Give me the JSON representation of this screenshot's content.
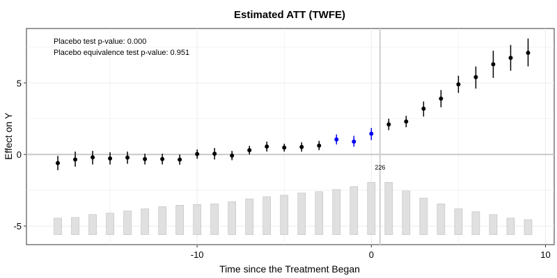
{
  "chart_data": {
    "type": "scatter",
    "title": "Estimated ATT (TWFE)",
    "xlabel": "Time since the Treatment Began",
    "ylabel": "Effect on Y",
    "xlim": [
      -19.8,
      10.5
    ],
    "ylim": [
      -6.3,
      8.8
    ],
    "xticks": [
      -10,
      0,
      10
    ],
    "yticks": [
      -5,
      0,
      5
    ],
    "grid": true,
    "annotations": [
      "Placebo test p-value: 0.000",
      "Placebo equivalence test p-value: 0.951"
    ],
    "count_label": {
      "text": "226",
      "x": 0,
      "y": -1.05
    },
    "colors": {
      "point": "#000000",
      "placebo": "#0000ee",
      "bar": "#e0e0e0",
      "bar_border": "#bdbdbd",
      "zero_line": "#c8c8c8"
    },
    "points": [
      {
        "x": -18,
        "y": -0.6,
        "lo": -1.1,
        "hi": -0.1,
        "placebo": false
      },
      {
        "x": -17,
        "y": -0.35,
        "lo": -0.85,
        "hi": 0.2,
        "placebo": false
      },
      {
        "x": -16,
        "y": -0.2,
        "lo": -0.7,
        "hi": 0.25,
        "placebo": false
      },
      {
        "x": -15,
        "y": -0.28,
        "lo": -0.7,
        "hi": 0.15,
        "placebo": false
      },
      {
        "x": -14,
        "y": -0.22,
        "lo": -0.65,
        "hi": 0.2,
        "placebo": false
      },
      {
        "x": -13,
        "y": -0.32,
        "lo": -0.7,
        "hi": 0.05,
        "placebo": false
      },
      {
        "x": -12,
        "y": -0.32,
        "lo": -0.7,
        "hi": 0.05,
        "placebo": false
      },
      {
        "x": -11,
        "y": -0.36,
        "lo": -0.72,
        "hi": 0.0,
        "placebo": false
      },
      {
        "x": -10,
        "y": 0.03,
        "lo": -0.3,
        "hi": 0.35,
        "placebo": false
      },
      {
        "x": -9,
        "y": 0.05,
        "lo": -0.35,
        "hi": 0.45,
        "placebo": false
      },
      {
        "x": -8,
        "y": -0.08,
        "lo": -0.4,
        "hi": 0.25,
        "placebo": false
      },
      {
        "x": -7,
        "y": 0.3,
        "lo": 0.0,
        "hi": 0.6,
        "placebo": false
      },
      {
        "x": -6,
        "y": 0.55,
        "lo": 0.2,
        "hi": 0.9,
        "placebo": false
      },
      {
        "x": -5,
        "y": 0.48,
        "lo": 0.2,
        "hi": 0.75,
        "placebo": false
      },
      {
        "x": -4,
        "y": 0.52,
        "lo": 0.2,
        "hi": 0.85,
        "placebo": false
      },
      {
        "x": -3,
        "y": 0.62,
        "lo": 0.3,
        "hi": 0.95,
        "placebo": false
      },
      {
        "x": -2,
        "y": 1.05,
        "lo": 0.7,
        "hi": 1.4,
        "placebo": true
      },
      {
        "x": -1,
        "y": 0.9,
        "lo": 0.55,
        "hi": 1.3,
        "placebo": true
      },
      {
        "x": 0,
        "y": 1.45,
        "lo": 1.0,
        "hi": 1.85,
        "placebo": true
      },
      {
        "x": 1,
        "y": 2.1,
        "lo": 1.7,
        "hi": 2.5,
        "placebo": false
      },
      {
        "x": 2,
        "y": 2.3,
        "lo": 1.9,
        "hi": 2.7,
        "placebo": false
      },
      {
        "x": 3,
        "y": 3.2,
        "lo": 2.65,
        "hi": 3.7,
        "placebo": false
      },
      {
        "x": 4,
        "y": 3.9,
        "lo": 3.3,
        "hi": 4.5,
        "placebo": false
      },
      {
        "x": 5,
        "y": 4.9,
        "lo": 4.3,
        "hi": 5.5,
        "placebo": false
      },
      {
        "x": 6,
        "y": 5.4,
        "lo": 4.6,
        "hi": 6.15,
        "placebo": false
      },
      {
        "x": 7,
        "y": 6.3,
        "lo": 5.35,
        "hi": 7.25,
        "placebo": false
      },
      {
        "x": 8,
        "y": 6.75,
        "lo": 5.85,
        "hi": 7.65,
        "placebo": false
      },
      {
        "x": 9,
        "y": 7.1,
        "lo": 6.15,
        "hi": 8.1,
        "placebo": false
      }
    ],
    "count_bars": {
      "baseline": -5.6,
      "tops": [
        {
          "x": -18,
          "top": -4.45
        },
        {
          "x": -17,
          "top": -4.4
        },
        {
          "x": -16,
          "top": -4.2
        },
        {
          "x": -15,
          "top": -4.1
        },
        {
          "x": -14,
          "top": -3.95
        },
        {
          "x": -13,
          "top": -3.8
        },
        {
          "x": -12,
          "top": -3.65
        },
        {
          "x": -11,
          "top": -3.55
        },
        {
          "x": -10,
          "top": -3.5
        },
        {
          "x": -9,
          "top": -3.45
        },
        {
          "x": -8,
          "top": -3.3
        },
        {
          "x": -7,
          "top": -3.1
        },
        {
          "x": -6,
          "top": -2.95
        },
        {
          "x": -5,
          "top": -2.85
        },
        {
          "x": -4,
          "top": -2.7
        },
        {
          "x": -3,
          "top": -2.6
        },
        {
          "x": -2,
          "top": -2.45
        },
        {
          "x": -1,
          "top": -2.25
        },
        {
          "x": 0,
          "top": -1.95
        },
        {
          "x": 1,
          "top": -1.95
        },
        {
          "x": 2,
          "top": -2.55
        },
        {
          "x": 3,
          "top": -3.05
        },
        {
          "x": 4,
          "top": -3.45
        },
        {
          "x": 5,
          "top": -3.8
        },
        {
          "x": 6,
          "top": -4.0
        },
        {
          "x": 7,
          "top": -4.2
        },
        {
          "x": 8,
          "top": -4.45
        },
        {
          "x": 9,
          "top": -4.55
        }
      ]
    }
  }
}
